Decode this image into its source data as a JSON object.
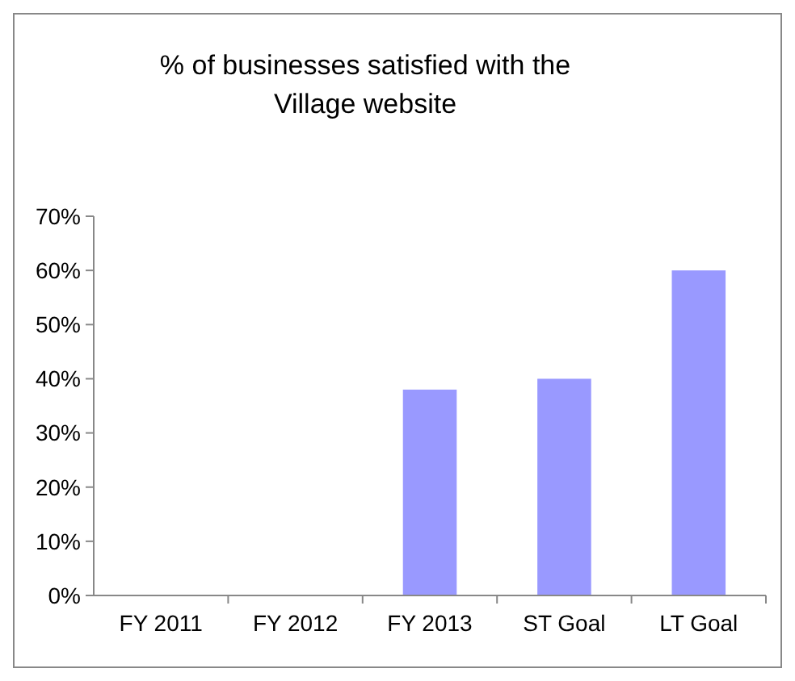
{
  "chart_data": {
    "type": "bar",
    "title": "% of businesses satisfied with the Village website",
    "categories": [
      "FY 2011",
      "FY 2012",
      "FY 2013",
      "ST Goal",
      "LT Goal"
    ],
    "values": [
      null,
      null,
      38,
      40,
      60
    ],
    "color": "#9999ff",
    "ylim": [
      0,
      70
    ],
    "yticks": [
      {
        "value": 0,
        "label": "0%"
      },
      {
        "value": 10,
        "label": "10%"
      },
      {
        "value": 20,
        "label": "20%"
      },
      {
        "value": 30,
        "label": "30%"
      },
      {
        "value": 40,
        "label": "40%"
      },
      {
        "value": 50,
        "label": "50%"
      },
      {
        "value": 60,
        "label": "60%"
      },
      {
        "value": 70,
        "label": "70%"
      }
    ],
    "grid": false
  }
}
